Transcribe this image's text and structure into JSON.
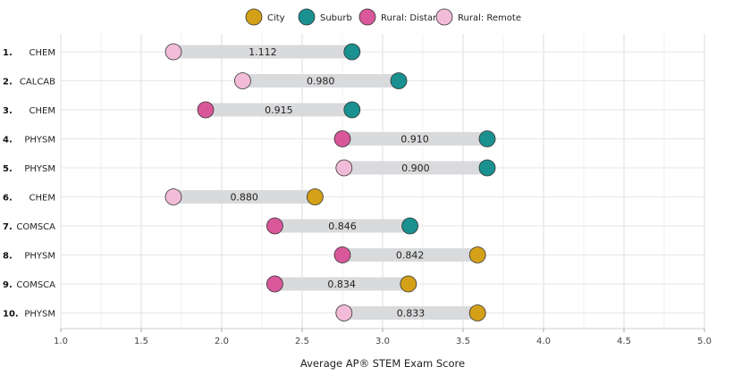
{
  "chart_data": {
    "type": "dumbbell",
    "xlabel": "Average AP® STEM Exam Score",
    "xlim": [
      1.0,
      5.0
    ],
    "xticks": [
      "1.0",
      "1.5",
      "2.0",
      "2.5",
      "3.0",
      "3.5",
      "4.0",
      "4.5",
      "5.0"
    ],
    "grid": true,
    "legend_position": "top",
    "legend": [
      {
        "name": "City",
        "color": "#D4A017"
      },
      {
        "name": "Suburb",
        "color": "#1A9090"
      },
      {
        "name": "Rural: Distant",
        "color": "#D8589A"
      },
      {
        "name": "Rural: Remote",
        "color": "#F2BCD8"
      }
    ],
    "rows": [
      {
        "rank": "1.",
        "subject": "CHEM",
        "low": 1.7,
        "low_group": "Rural: Remote",
        "high": 2.81,
        "high_group": "Suburb",
        "gap": "1.112"
      },
      {
        "rank": "2.",
        "subject": "CALCAB",
        "low": 2.13,
        "low_group": "Rural: Remote",
        "high": 3.1,
        "high_group": "Suburb",
        "gap": "0.980"
      },
      {
        "rank": "3.",
        "subject": "CHEM",
        "low": 1.9,
        "low_group": "Rural: Distant",
        "high": 2.81,
        "high_group": "Suburb",
        "gap": "0.915"
      },
      {
        "rank": "4.",
        "subject": "PHYSM",
        "low": 2.75,
        "low_group": "Rural: Distant",
        "high": 3.65,
        "high_group": "Suburb",
        "gap": "0.910"
      },
      {
        "rank": "5.",
        "subject": "PHYSM",
        "low": 2.76,
        "low_group": "Rural: Remote",
        "high": 3.65,
        "high_group": "Suburb",
        "gap": "0.900"
      },
      {
        "rank": "6.",
        "subject": "CHEM",
        "low": 1.7,
        "low_group": "Rural: Remote",
        "high": 2.58,
        "high_group": "City",
        "gap": "0.880"
      },
      {
        "rank": "7.",
        "subject": "COMSCA",
        "low": 2.33,
        "low_group": "Rural: Distant",
        "high": 3.17,
        "high_group": "Suburb",
        "gap": "0.846"
      },
      {
        "rank": "8.",
        "subject": "PHYSM",
        "low": 2.75,
        "low_group": "Rural: Distant",
        "high": 3.59,
        "high_group": "City",
        "gap": "0.842"
      },
      {
        "rank": "9.",
        "subject": "COMSCA",
        "low": 2.33,
        "low_group": "Rural: Distant",
        "high": 3.16,
        "high_group": "City",
        "gap": "0.834"
      },
      {
        "rank": "10.",
        "subject": "PHYSM",
        "low": 2.76,
        "low_group": "Rural: Remote",
        "high": 3.59,
        "high_group": "City",
        "gap": "0.833"
      }
    ]
  }
}
